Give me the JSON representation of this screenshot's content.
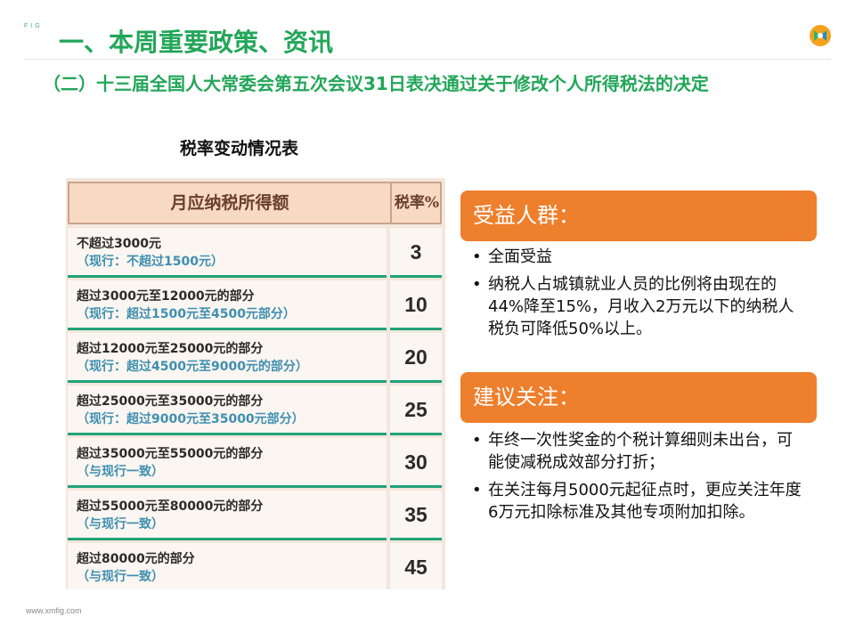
{
  "brand_small": "FIG",
  "section_title": "一、本周重要政策、资讯",
  "subtitle": "（二）十三届全国人大常委会第五次会议31日表决通过关于修改个人所得税法的决定",
  "table_caption": "税率变动情况表",
  "tax_table": {
    "headers": {
      "income": "月应纳税所得额",
      "rate": "税率%"
    },
    "rows": [
      {
        "new_bracket": "不超过3000元",
        "old_bracket": "（现行：不超过1500元）",
        "rate": "3"
      },
      {
        "new_bracket": "超过3000元至12000元的部分",
        "old_bracket": "（现行：超过1500元至4500元部分）",
        "rate": "10"
      },
      {
        "new_bracket": "超过12000元至25000元的部分",
        "old_bracket": "（现行：超过4500元至9000元的部分）",
        "rate": "20"
      },
      {
        "new_bracket": "超过25000元至35000元的部分",
        "old_bracket": "（现行：超过9000元至35000元部分）",
        "rate": "25"
      },
      {
        "new_bracket": "超过35000元至55000元的部分",
        "old_bracket": "（与现行一致）",
        "rate": "30"
      },
      {
        "new_bracket": "超过55000元至80000元的部分",
        "old_bracket": "（与现行一致）",
        "rate": "35"
      },
      {
        "new_bracket": "超过80000元的部分",
        "old_bracket": "（与现行一致）",
        "rate": "45"
      }
    ]
  },
  "beneficiaries": {
    "header": "受益人群：",
    "items": [
      "全面受益",
      "纳税人占城镇就业人员的比例将由现在的44%降至15%，月收入2万元以下的纳税人税负可降低50%以上。"
    ]
  },
  "suggestions": {
    "header": "建议关注：",
    "items": [
      "年终一次性奖金的个税计算细则未出台，可能使减税成效部分打折；",
      "在关注每月5000元起征点时，更应关注年度6万元扣除标准及其他专项附加扣除。"
    ]
  },
  "bullet_char": "•",
  "footer_url": "www.xmfig.com",
  "colors": {
    "green": "#23a659",
    "orange": "#ee7f2d",
    "teal_line": "#21a27a",
    "blue_text": "#3f8fb0"
  },
  "icons": {
    "logo": "brand-logo-icon"
  }
}
